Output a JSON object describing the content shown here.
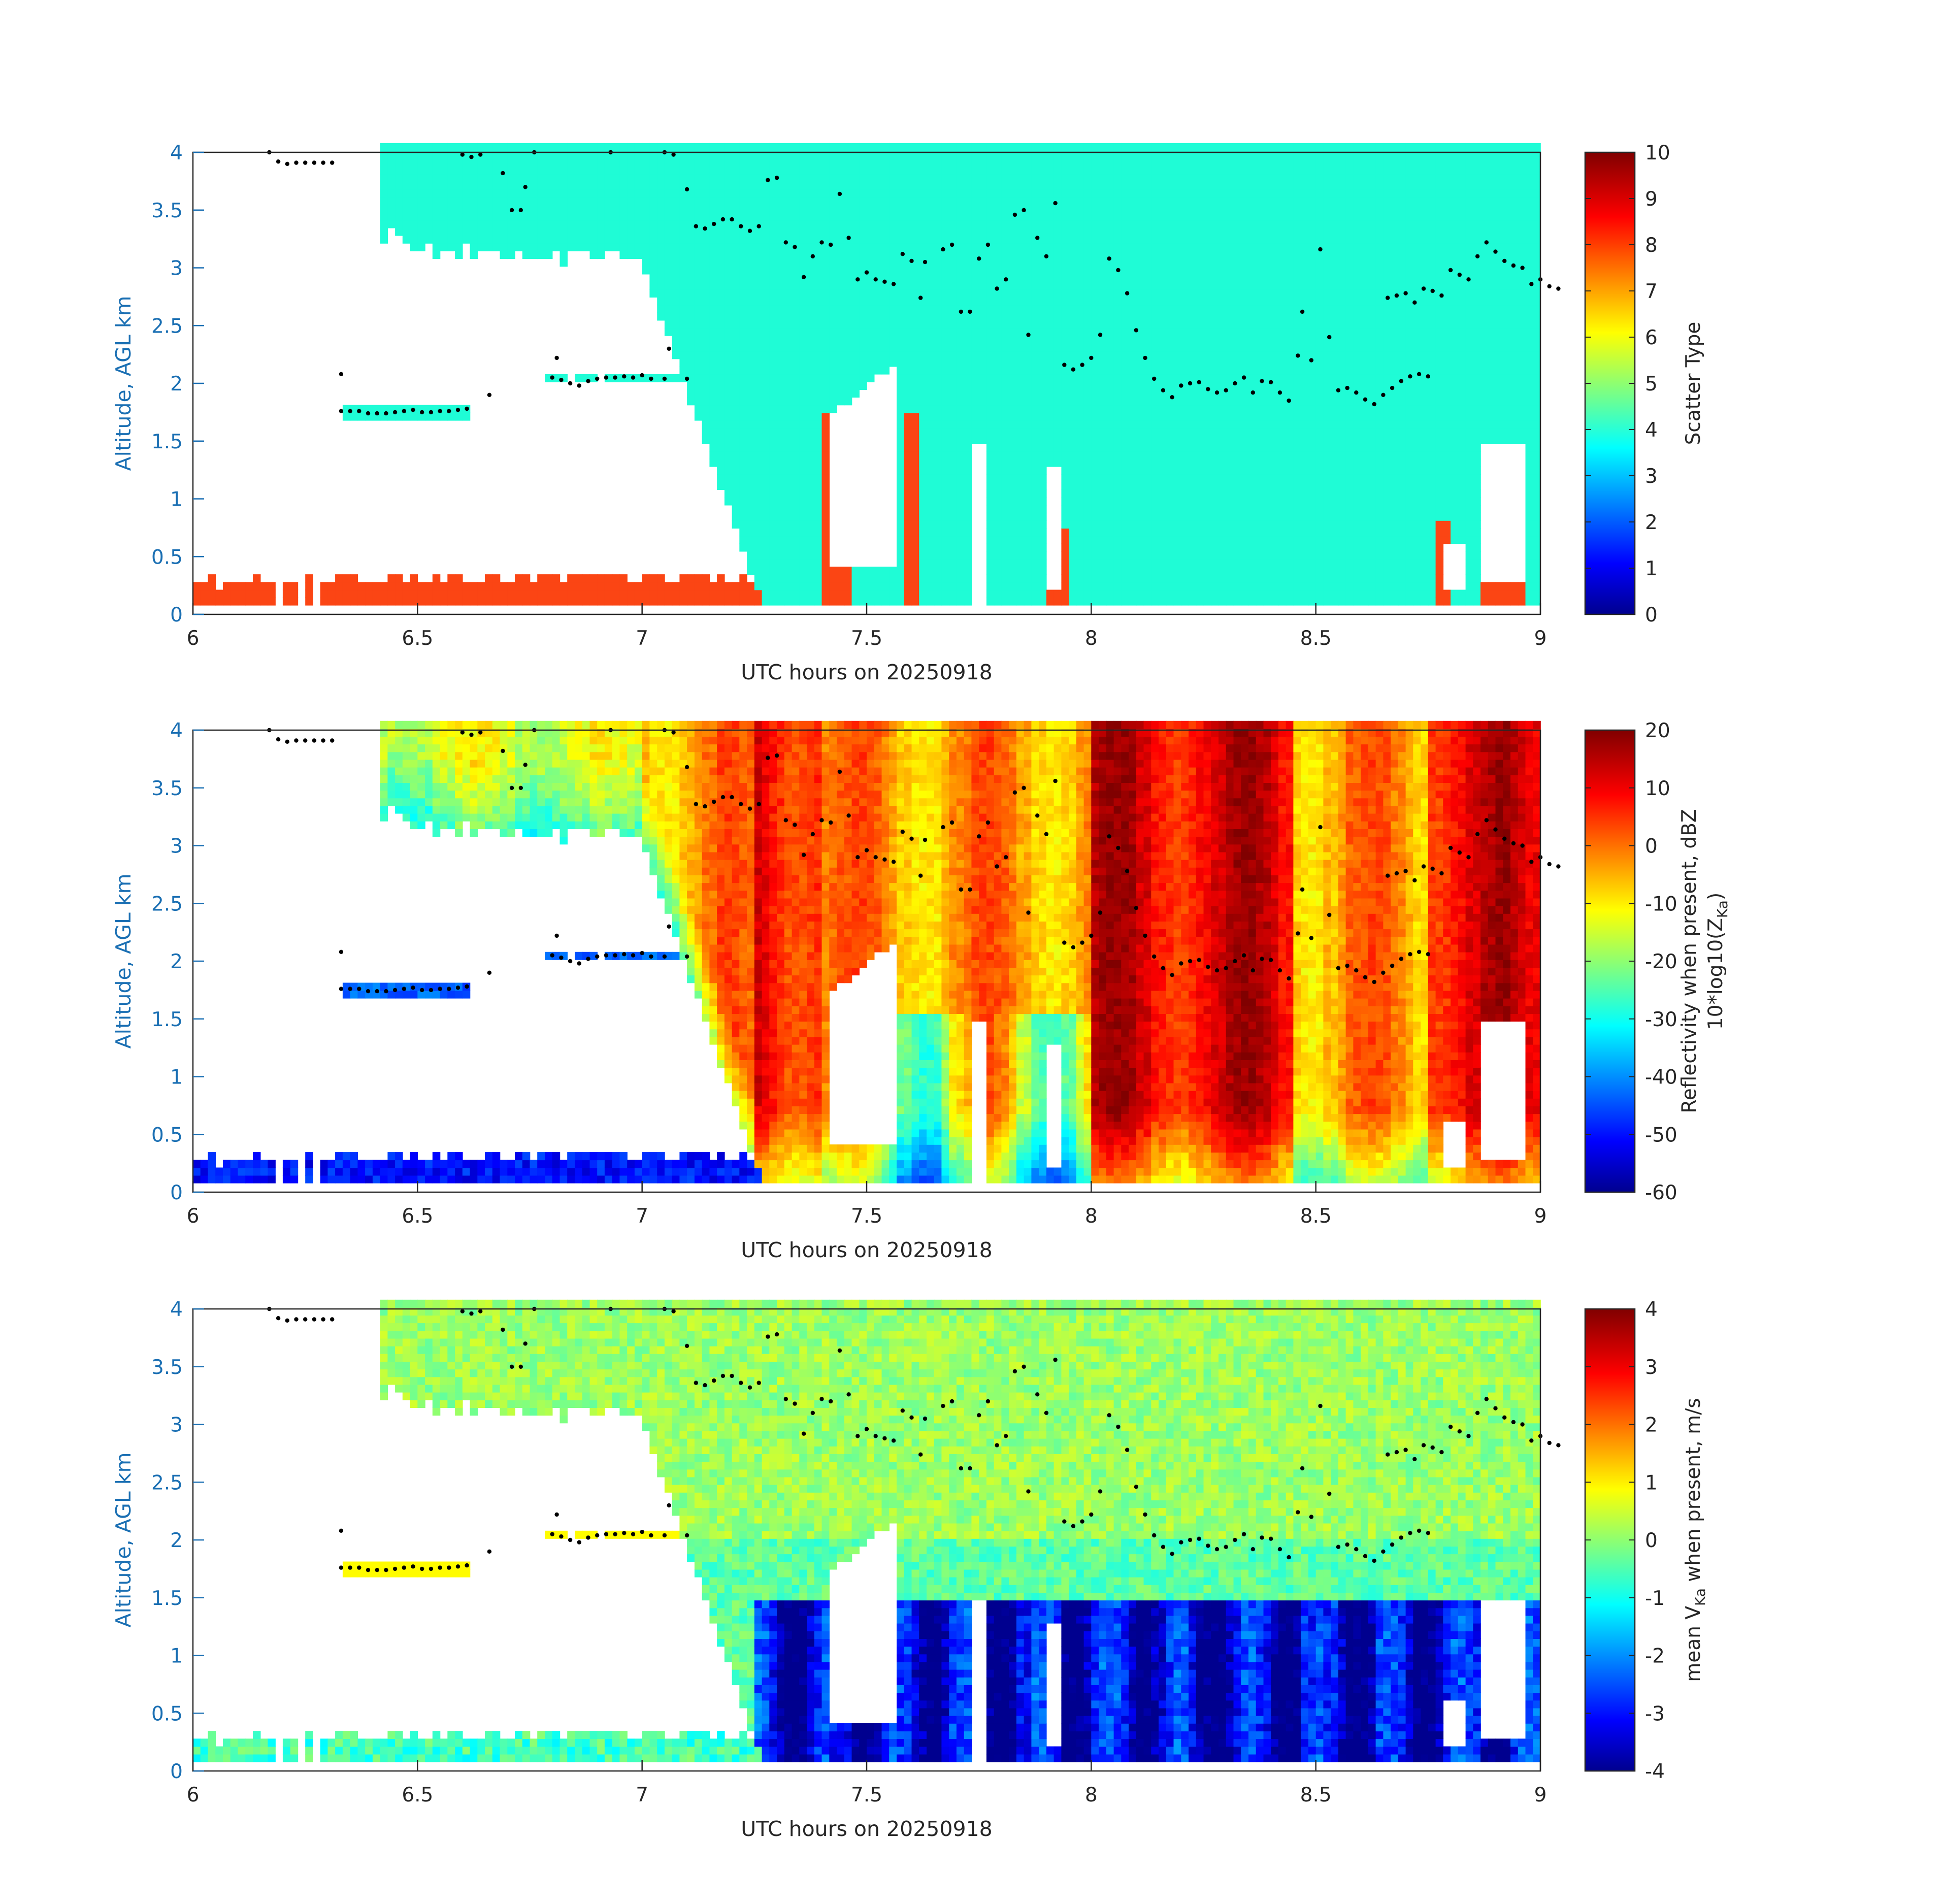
{
  "chart_data": [
    {
      "type": "heatmap",
      "title": "",
      "xlabel": "UTC hours on 20250918",
      "ylabel": "Altitude, AGL km",
      "xlim": [
        6,
        9
      ],
      "ylim": [
        0,
        4
      ],
      "xticks": [
        "6",
        "6.5",
        "7",
        "7.5",
        "8",
        "8.5",
        "9"
      ],
      "yticks": [
        "0",
        "0.5",
        "1",
        "1.5",
        "2",
        "2.5",
        "3",
        "3.5",
        "4"
      ],
      "colorbar": {
        "label": "Scatter Type",
        "clim": [
          0,
          10
        ],
        "ticks": [
          "0",
          "1",
          "2",
          "3",
          "4",
          "5",
          "6",
          "7",
          "8",
          "9",
          "10"
        ]
      },
      "value_range": [
        0,
        10
      ],
      "cell_values": {
        "ice_cloud": 4,
        "liquid_drizzle": 8
      },
      "overlay": "black dots marking a layer-top altitude (km)"
    },
    {
      "type": "heatmap",
      "title": "",
      "xlabel": "UTC hours on 20250918",
      "ylabel": "Altitude, AGL km",
      "xlim": [
        6,
        9
      ],
      "ylim": [
        0,
        4
      ],
      "xticks": [
        "6",
        "6.5",
        "7",
        "7.5",
        "8",
        "8.5",
        "9"
      ],
      "yticks": [
        "0",
        "0.5",
        "1",
        "1.5",
        "2",
        "2.5",
        "3",
        "3.5",
        "4"
      ],
      "colorbar": {
        "label_line1": "Reflectivity when present, dBZ",
        "label_line2": "10*log10(Z",
        "label_sub": "Ka",
        "label_end": ")",
        "clim": [
          -60,
          20
        ],
        "ticks": [
          "20",
          "10",
          "0",
          "-10",
          "-20",
          "-30",
          "-40",
          "-50",
          "-60"
        ]
      },
      "value_range": [
        -60,
        20
      ],
      "units": "dBZ"
    },
    {
      "type": "heatmap",
      "title": "",
      "xlabel": "UTC hours on 20250918",
      "ylabel": "Altitude, AGL km",
      "xlim": [
        6,
        9
      ],
      "ylim": [
        0,
        4
      ],
      "xticks": [
        "6",
        "6.5",
        "7",
        "7.5",
        "8",
        "8.5",
        "9"
      ],
      "yticks": [
        "0",
        "0.5",
        "1",
        "1.5",
        "2",
        "2.5",
        "3",
        "3.5",
        "4"
      ],
      "colorbar": {
        "label_pre": "mean V",
        "label_sub": "Ka",
        "label_post": " when present, m/s",
        "clim": [
          -4,
          4
        ],
        "ticks": [
          "4",
          "3",
          "2",
          "1",
          "0",
          "-1",
          "-2",
          "-3",
          "-4"
        ]
      },
      "value_range": [
        -4,
        4
      ],
      "units": "m/s"
    }
  ],
  "colors": {
    "axis_blue": "#1a6fb3",
    "axis_black": "#262626",
    "ice_cyan": "#1ffcd6",
    "liquid_orange": "#fb4514",
    "dot": "#000000"
  }
}
